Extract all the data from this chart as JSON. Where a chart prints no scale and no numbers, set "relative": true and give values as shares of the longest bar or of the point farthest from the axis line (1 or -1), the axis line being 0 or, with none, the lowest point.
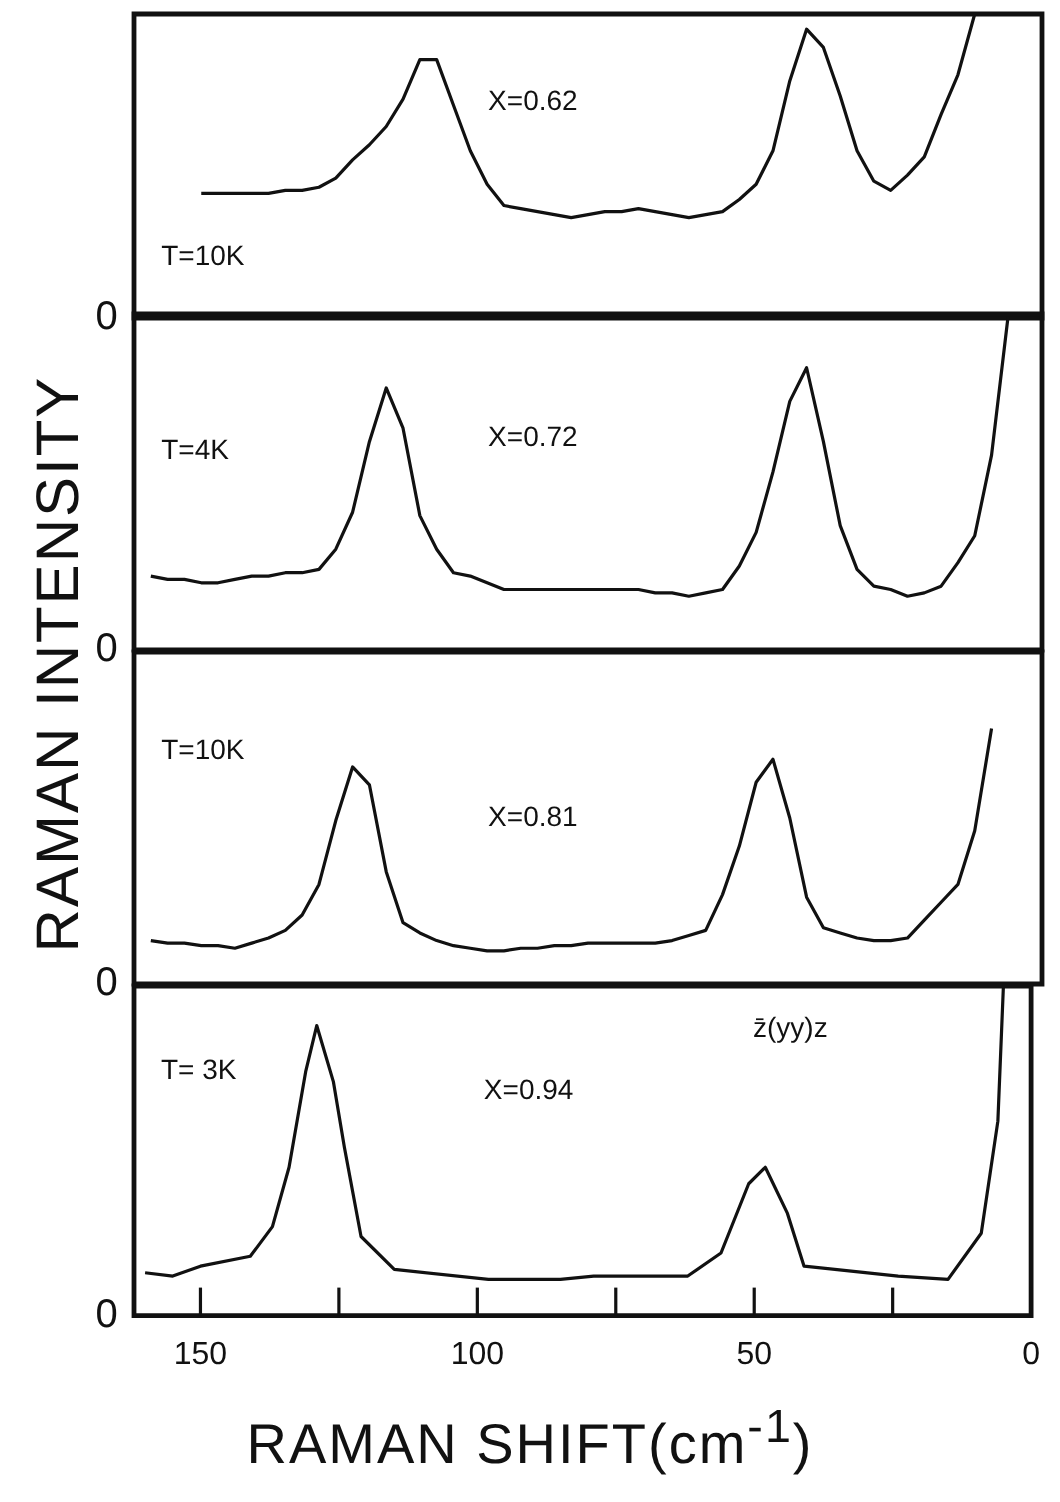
{
  "chart_data": [
    {
      "type": "line",
      "relative": true,
      "ylabel": "RAMAN INTENSITY",
      "legend": false,
      "marker": "none",
      "tick_labels": false,
      "categories": [
        null,
        null,
        null,
        null,
        null,
        null,
        null,
        null,
        null,
        null,
        null,
        null,
        null,
        null,
        null,
        null,
        null,
        null,
        null,
        null,
        null,
        null,
        null,
        null,
        null,
        null,
        null,
        null,
        null,
        null,
        null,
        null,
        null,
        null,
        null,
        null,
        null,
        null,
        null,
        null,
        null,
        null,
        null,
        null,
        null,
        null,
        null,
        null,
        null,
        null,
        null,
        null,
        null,
        null,
        null
      ],
      "series": [
        {
          "color": "#111111",
          "values": [
            null,
            null,
            null,
            null,
            0.41,
            0.41,
            0.41,
            0.41,
            0.41,
            0.42,
            0.42,
            0.43,
            0.46,
            0.52,
            0.57,
            0.63,
            0.72,
            0.85,
            0.85,
            0.7,
            0.55,
            0.44,
            0.37,
            0.36,
            0.35,
            0.34,
            0.33,
            0.34,
            0.35,
            0.35,
            0.36,
            0.35,
            0.34,
            0.33,
            0.34,
            0.35,
            0.39,
            0.44,
            0.55,
            0.78,
            0.95,
            0.89,
            0.73,
            0.55,
            0.45,
            0.42,
            0.47,
            0.53,
            0.67,
            0.8,
            1,
            null,
            null,
            null,
            null
          ]
        }
      ],
      "annotations": [
        "0",
        "T=10K",
        "X=0.62"
      ]
    },
    {
      "type": "line",
      "relative": true,
      "legend": false,
      "marker": "none",
      "tick_labels": false,
      "categories": [
        null,
        null,
        null,
        null,
        null,
        null,
        null,
        null,
        null,
        null,
        null,
        null,
        null,
        null,
        null,
        null,
        null,
        null,
        null,
        null,
        null,
        null,
        null,
        null,
        null,
        null,
        null,
        null,
        null,
        null,
        null,
        null,
        null,
        null,
        null,
        null,
        null,
        null,
        null,
        null,
        null,
        null,
        null,
        null,
        null,
        null,
        null,
        null,
        null,
        null,
        null,
        null,
        null,
        null,
        null
      ],
      "series": [
        {
          "color": "#111111",
          "values": [
            null,
            0.22,
            0.21,
            0.21,
            0.2,
            0.2,
            0.21,
            0.22,
            0.22,
            0.23,
            0.23,
            0.24,
            0.3,
            0.41,
            0.62,
            0.78,
            0.66,
            0.4,
            0.3,
            0.23,
            0.22,
            0.2,
            0.18,
            0.18,
            0.18,
            0.18,
            0.18,
            0.18,
            0.18,
            0.18,
            0.18,
            0.17,
            0.17,
            0.16,
            0.17,
            0.18,
            0.25,
            0.35,
            0.53,
            0.74,
            0.84,
            0.62,
            0.37,
            0.24,
            0.19,
            0.18,
            0.16,
            0.17,
            0.19,
            0.26,
            0.34,
            0.58,
            1,
            null,
            null
          ]
        }
      ],
      "annotations": [
        "0",
        "T=4K",
        "X=0.72"
      ]
    },
    {
      "type": "line",
      "relative": true,
      "legend": false,
      "marker": "none",
      "tick_labels": false,
      "categories": [
        null,
        null,
        null,
        null,
        null,
        null,
        null,
        null,
        null,
        null,
        null,
        null,
        null,
        null,
        null,
        null,
        null,
        null,
        null,
        null,
        null,
        null,
        null,
        null,
        null,
        null,
        null,
        null,
        null,
        null,
        null,
        null,
        null,
        null,
        null,
        null,
        null,
        null,
        null,
        null,
        null,
        null,
        null,
        null,
        null,
        null,
        null,
        null,
        null,
        null,
        null,
        null,
        null,
        null,
        null
      ],
      "series": [
        {
          "color": "#111111",
          "values": [
            null,
            0.17,
            0.16,
            0.16,
            0.15,
            0.15,
            0.14,
            0.16,
            0.18,
            0.21,
            0.27,
            0.39,
            0.64,
            0.85,
            0.78,
            0.44,
            0.24,
            0.2,
            0.17,
            0.15,
            0.14,
            0.13,
            0.13,
            0.14,
            0.14,
            0.15,
            0.15,
            0.16,
            0.16,
            0.16,
            0.16,
            0.16,
            0.17,
            0.19,
            0.21,
            0.35,
            0.54,
            0.79,
            0.88,
            0.65,
            0.34,
            0.22,
            0.2,
            0.18,
            0.17,
            0.17,
            0.18,
            0.25,
            0.32,
            0.39,
            0.6,
            1,
            null,
            null,
            null
          ]
        }
      ],
      "annotations": [
        "0",
        "T=10K",
        "X=0.81"
      ]
    },
    {
      "type": "line",
      "relative": true,
      "xlabel": "RAMAN SHIFT(cm$^{-1}$)",
      "legend": false,
      "marker": "none",
      "tick_labels": "x",
      "xlim": [
        162,
        0
      ],
      "xticks": [
        150,
        {
          "value": 125,
          "label": null
        },
        100,
        {
          "value": 75,
          "label": null
        },
        50,
        {
          "value": 25,
          "label": null
        },
        0
      ],
      "series": [
        {
          "color": "#111111",
          "x": [
            160,
            155,
            150,
            141,
            137,
            134,
            131,
            129,
            126,
            124,
            121,
            115,
            98,
            85,
            79,
            62,
            56,
            51,
            48,
            44,
            41,
            24,
            15,
            9,
            6,
            5
          ],
          "values": [
            0.13,
            0.12,
            0.15,
            0.18,
            0.27,
            0.45,
            0.74,
            0.88,
            0.71,
            0.51,
            0.24,
            0.14,
            0.11,
            0.11,
            0.12,
            0.12,
            0.19,
            0.4,
            0.45,
            0.31,
            0.15,
            0.12,
            0.11,
            0.25,
            0.59,
            1
          ]
        }
      ],
      "annotations": [
        "0",
        "T= 3K",
        "X=0.94",
        "z̄(yy)z"
      ]
    }
  ]
}
